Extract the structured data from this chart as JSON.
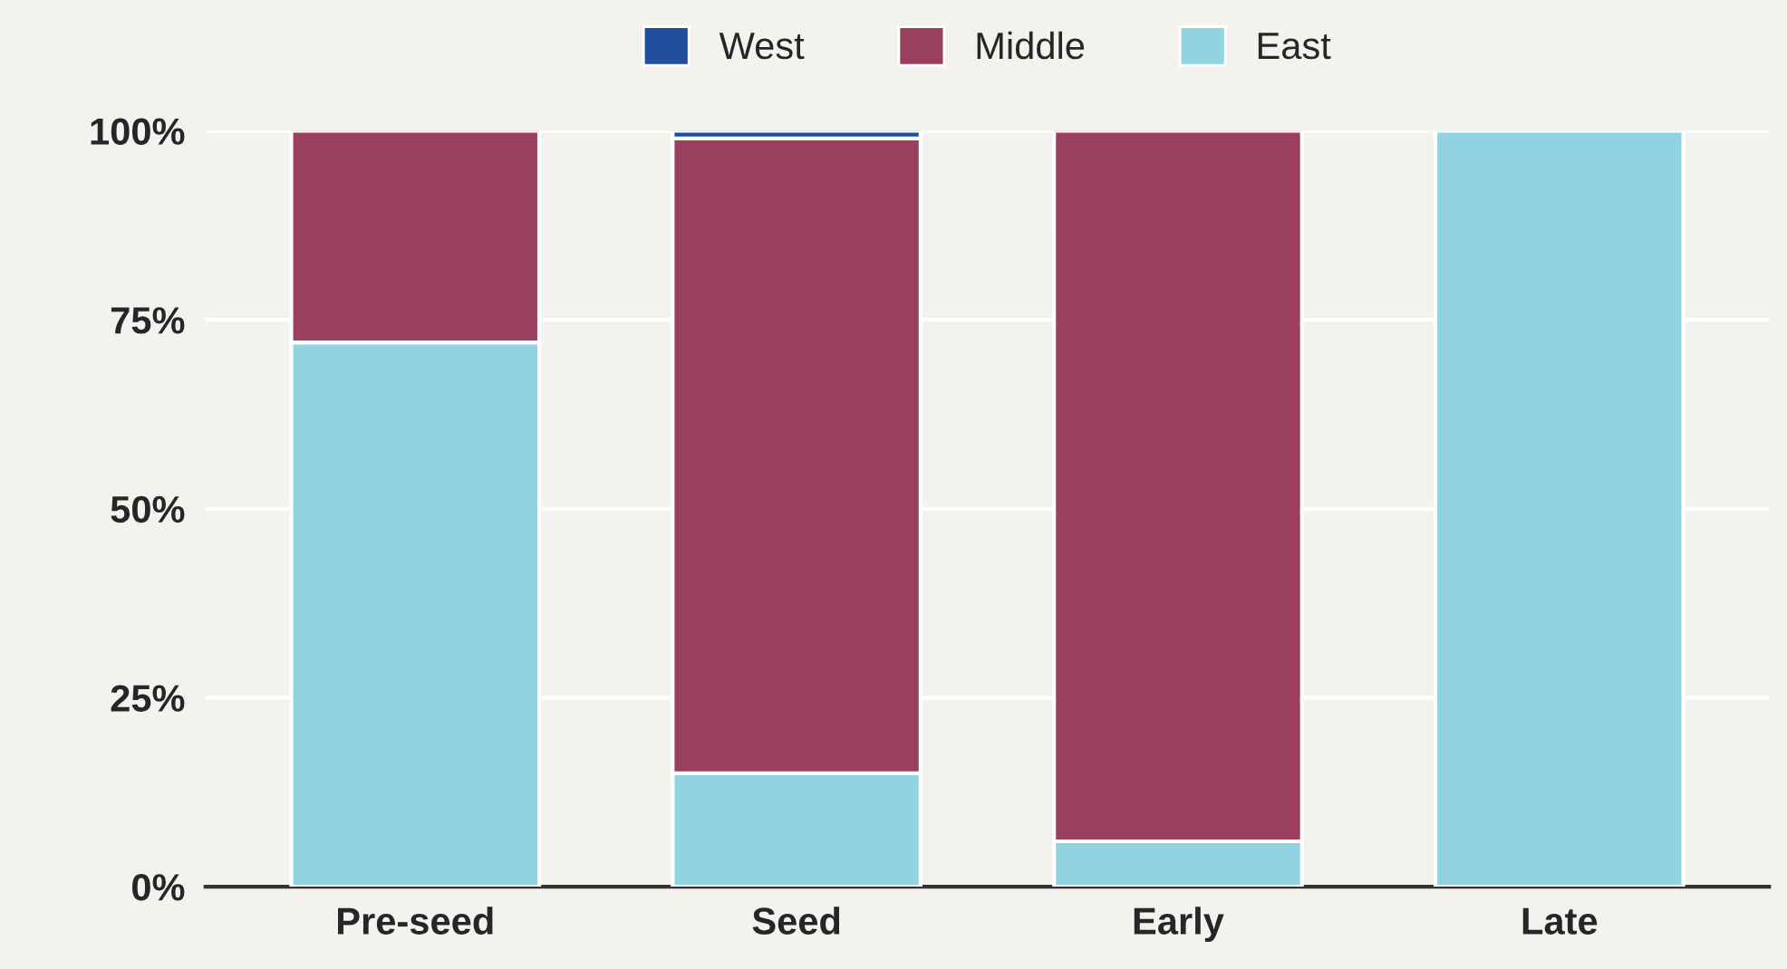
{
  "chart_data": {
    "type": "bar",
    "stacked": true,
    "categories": [
      "Pre-seed",
      "Seed",
      "Early",
      "Late"
    ],
    "series": [
      {
        "name": "East",
        "color": "#92d3e3",
        "values": [
          72,
          15,
          6,
          100
        ]
      },
      {
        "name": "Middle",
        "color": "#9b3f60",
        "values": [
          28,
          84,
          94,
          null
        ]
      },
      {
        "name": "West",
        "color": "#1f4e9c",
        "values": [
          null,
          1,
          null,
          null
        ]
      }
    ],
    "ylim": [
      0,
      100
    ],
    "yticks": [
      {
        "value": 0,
        "label": "0%"
      },
      {
        "value": 25,
        "label": "25%"
      },
      {
        "value": 50,
        "label": "50%"
      },
      {
        "value": 75,
        "label": "75%"
      },
      {
        "value": 100,
        "label": "100%"
      }
    ],
    "grid": "y",
    "legend": "top"
  }
}
